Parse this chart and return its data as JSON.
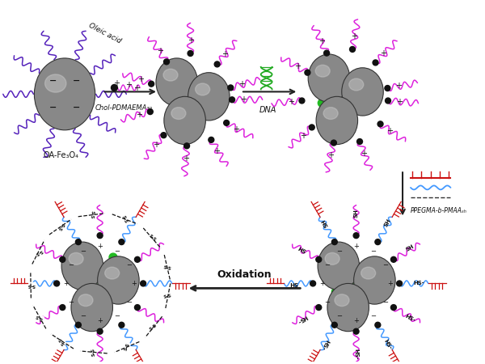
{
  "bg_color": "#ffffff",
  "sphere_color": "#888888",
  "sphere_highlight": "#cccccc",
  "sphere_edge": "#333333",
  "dot_color": "#111111",
  "green_dot": "#22bb22",
  "blue_chain": "#4499ff",
  "magenta_chain": "#dd22dd",
  "red_chain": "#cc1111",
  "purple_chain": "#5522bb",
  "dna_color": "#22aa22",
  "labels": {
    "oa_fe3o4": "OA-Fe₃O₄",
    "oleic_acid": "Oleic acid",
    "chol": "Chol-PDMAEMA₃₀",
    "dna": "DNA",
    "ppegma": "PPEGMA-b-PMAAₛₕ",
    "oxidation": "Oxidation"
  }
}
